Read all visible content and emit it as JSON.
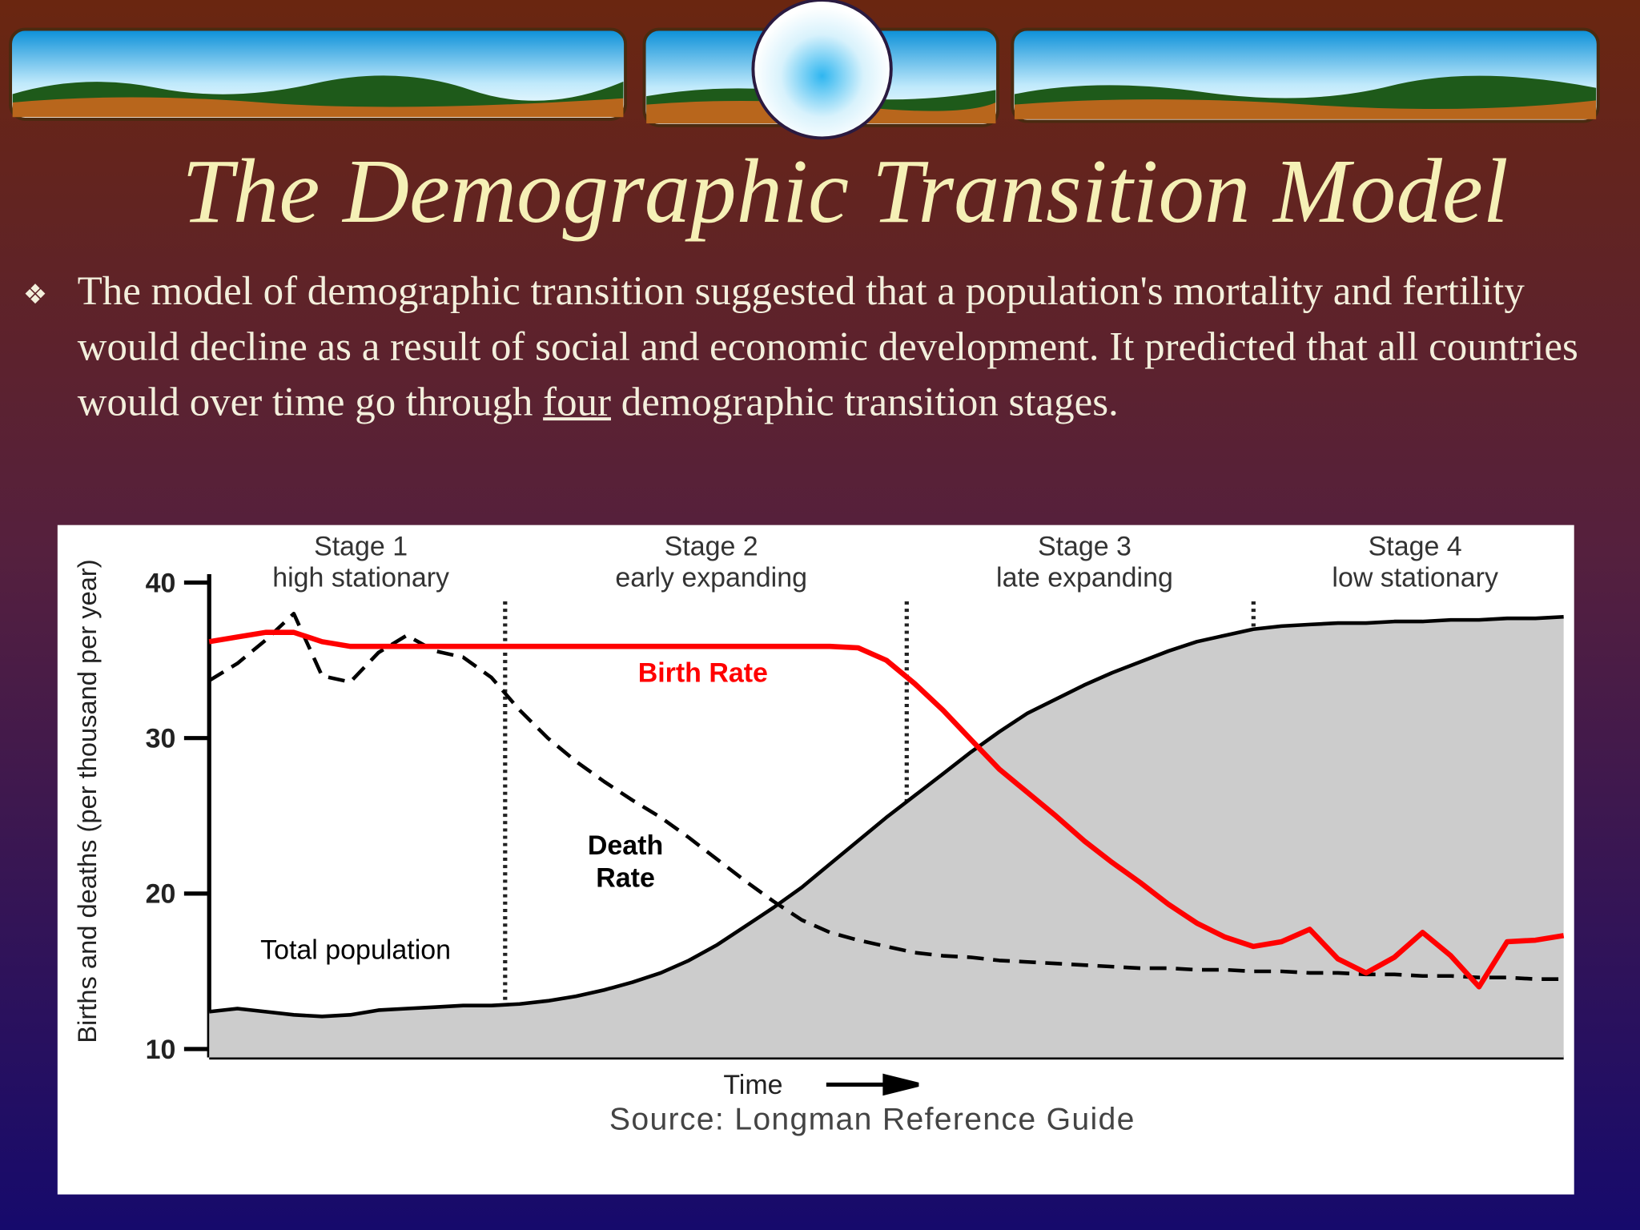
{
  "slide": {
    "title": "The Demographic Transition Model",
    "bullet": [
      "The model of demographic transition suggested that a population's mortality and fertility would decline as a result of social and economic development. It predicted that all countries would over time go through ",
      "four",
      " demographic transition stages."
    ]
  },
  "chart_data": {
    "type": "line",
    "y_label": "Births and deaths (per thousand per year)",
    "x_label": "Time",
    "source": "Source: Longman Reference Guide",
    "stages": [
      {
        "name": "Stage 1",
        "description": "high stationary"
      },
      {
        "name": "Stage 2",
        "description": "early expanding"
      },
      {
        "name": "Stage 3",
        "description": "late expanding"
      },
      {
        "name": "Stage 4",
        "description": "low stationary"
      }
    ],
    "categories": [
      null,
      null,
      null,
      null,
      null,
      null,
      null,
      null,
      null,
      null,
      null,
      null,
      null,
      null,
      null,
      null,
      null,
      null,
      null,
      null,
      null,
      null,
      null,
      null,
      null,
      null,
      null,
      null,
      null,
      null,
      null,
      null,
      null,
      null,
      null,
      null,
      null,
      null,
      null,
      null,
      null,
      null,
      null,
      null,
      null,
      null,
      null,
      null,
      null
    ],
    "ylim": [
      10,
      40
    ],
    "yticks": [
      10,
      20,
      30,
      40
    ],
    "series": [
      {
        "name": "Total population",
        "color": "#000000",
        "fill": "#cccccc",
        "line_style": "solid",
        "values": [
          12.4,
          12.6,
          12.4,
          12.2,
          12.1,
          12.2,
          12.5,
          12.6,
          12.7,
          12.8,
          12.8,
          12.9,
          13.1,
          13.4,
          13.8,
          14.3,
          14.9,
          15.7,
          16.7,
          17.9,
          19.1,
          20.4,
          21.9,
          23.4,
          24.9,
          26.3,
          27.7,
          29.1,
          30.4,
          31.6,
          32.5,
          33.4,
          34.2,
          34.9,
          35.6,
          36.2,
          36.6,
          37.0,
          37.2,
          37.3,
          37.4,
          37.4,
          37.5,
          37.5,
          37.6,
          37.6,
          37.7,
          37.7,
          37.8
        ]
      },
      {
        "name": "Death Rate",
        "color": "#000000",
        "line_style": "dashed",
        "values": [
          33.7,
          34.8,
          36.3,
          38.0,
          34.0,
          33.6,
          35.5,
          36.6,
          35.6,
          35.2,
          33.9,
          31.8,
          30.0,
          28.5,
          27.2,
          26.0,
          24.9,
          23.6,
          22.2,
          20.8,
          19.5,
          18.3,
          17.5,
          17.0,
          16.6,
          16.2,
          16.0,
          15.9,
          15.7,
          15.6,
          15.5,
          15.4,
          15.3,
          15.2,
          15.2,
          15.1,
          15.1,
          15.0,
          15.0,
          14.9,
          14.9,
          14.8,
          14.8,
          14.7,
          14.7,
          14.6,
          14.6,
          14.5,
          14.5
        ]
      },
      {
        "name": "Birth Rate",
        "color": "#ff0000",
        "line_style": "solid",
        "values": [
          36.2,
          36.5,
          36.8,
          36.8,
          36.2,
          35.9,
          35.9,
          35.9,
          35.9,
          35.9,
          35.9,
          35.9,
          35.9,
          35.9,
          35.9,
          35.9,
          35.9,
          35.9,
          35.9,
          35.9,
          35.9,
          35.9,
          35.9,
          35.8,
          35.0,
          33.5,
          31.8,
          29.9,
          28.0,
          26.5,
          25.0,
          23.4,
          22.0,
          20.7,
          19.3,
          18.1,
          17.2,
          16.6,
          16.9,
          17.7,
          15.8,
          14.9,
          15.9,
          17.5,
          16.0,
          14.0,
          16.9,
          17.0,
          17.3
        ]
      }
    ]
  }
}
